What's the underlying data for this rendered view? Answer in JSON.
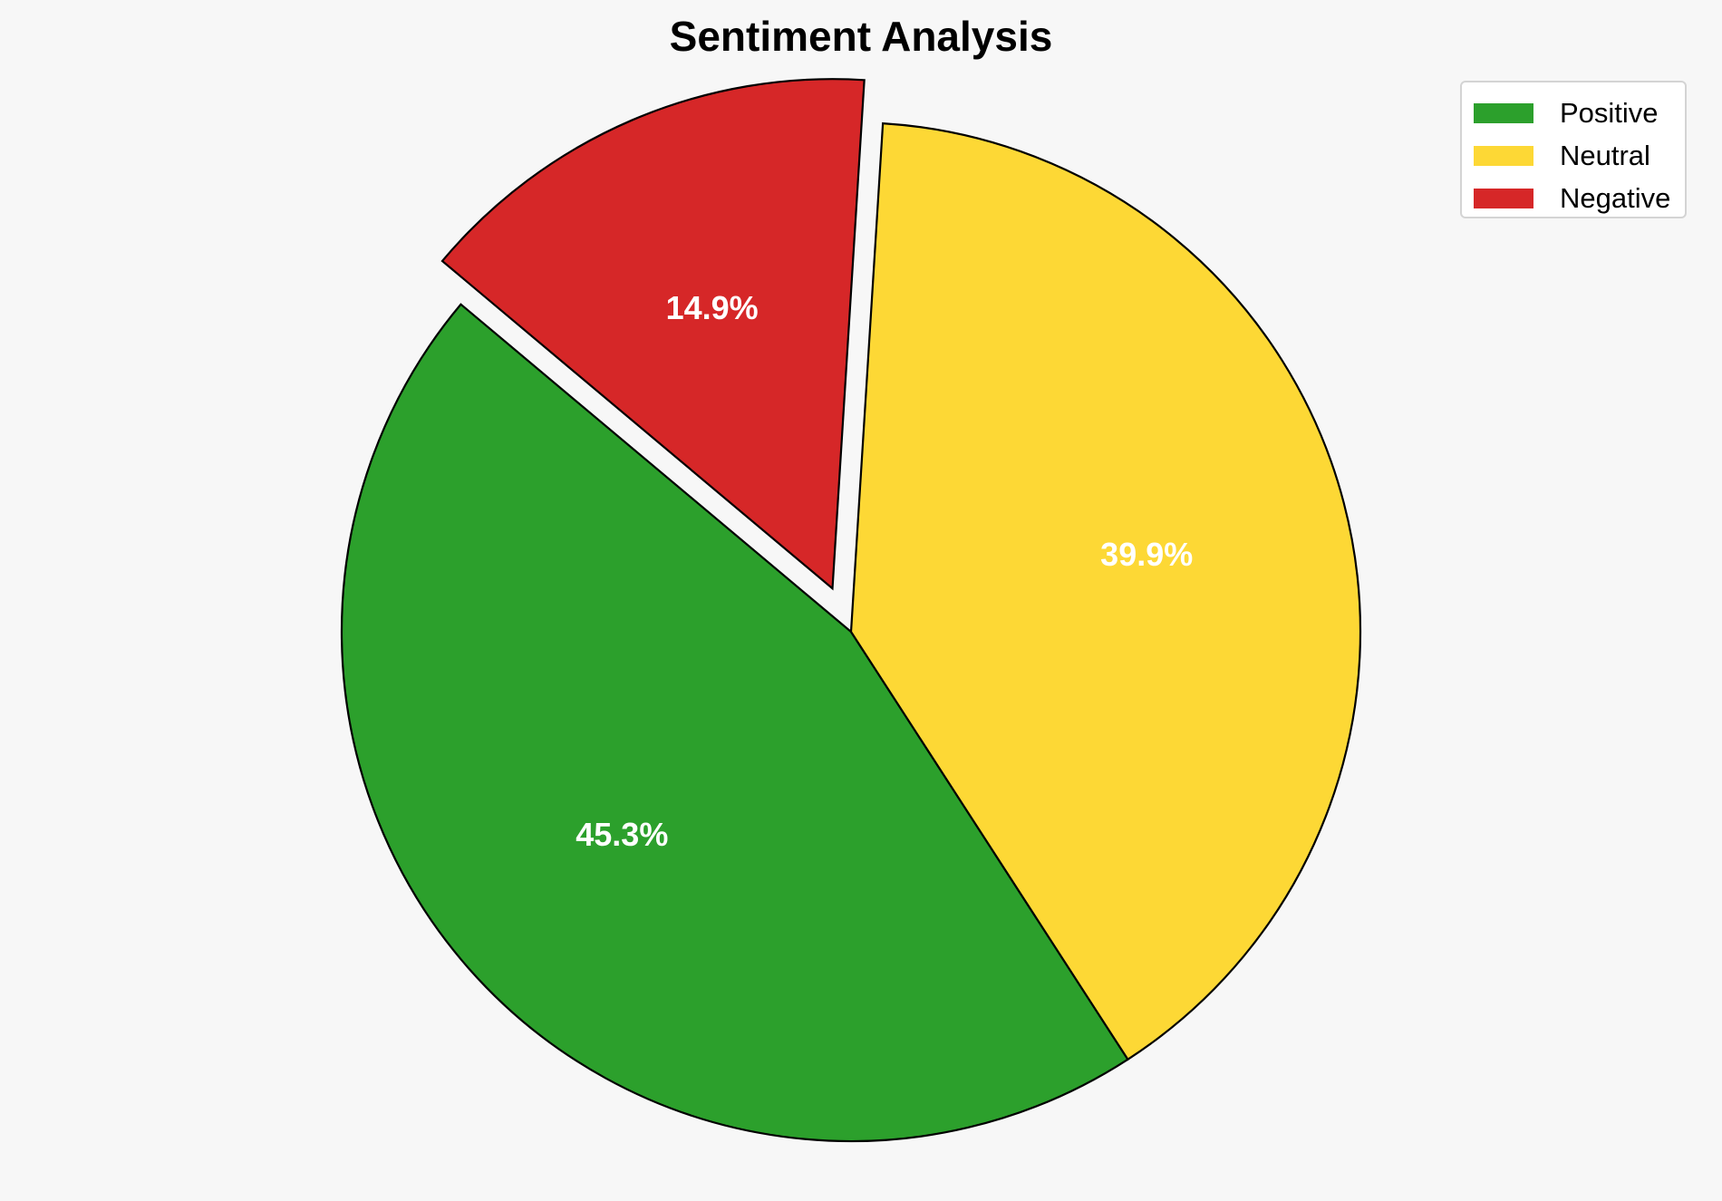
{
  "chart_data": {
    "type": "pie",
    "title": "Sentiment Analysis",
    "categories": [
      "Positive",
      "Neutral",
      "Negative"
    ],
    "values": [
      45.3,
      39.9,
      14.9
    ],
    "labels": [
      "45.3%",
      "39.9%",
      "14.9%"
    ],
    "colors": [
      "#2ca02c",
      "#fdd835",
      "#d62728"
    ],
    "exploded": [
      false,
      false,
      true
    ],
    "start_angle_deg": 140,
    "direction": "counterclockwise",
    "legend_position": "top-right",
    "legend_entries": [
      "Positive",
      "Neutral",
      "Negative"
    ]
  }
}
